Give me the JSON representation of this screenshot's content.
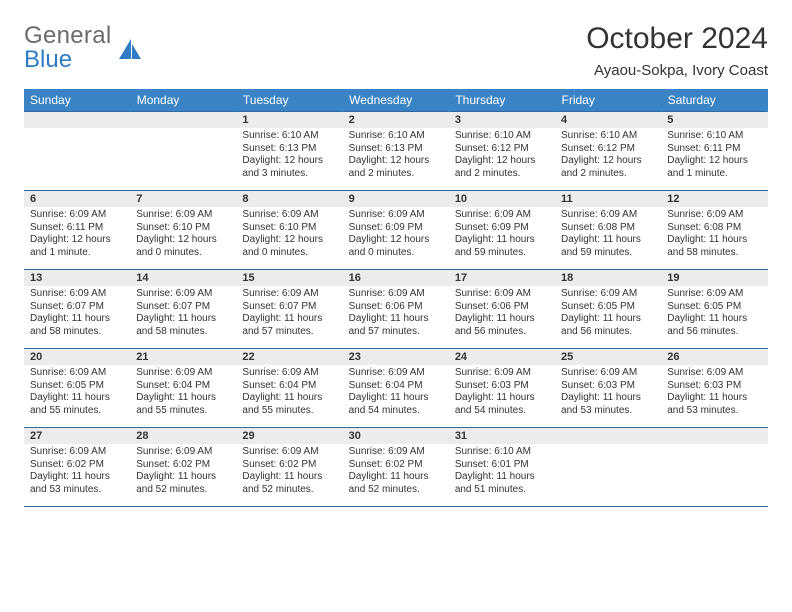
{
  "logo": {
    "word1": "General",
    "word2": "Blue"
  },
  "title": "October 2024",
  "location": "Ayaou-Sokpa, Ivory Coast",
  "day_headers": [
    "Sunday",
    "Monday",
    "Tuesday",
    "Wednesday",
    "Thursday",
    "Friday",
    "Saturday"
  ],
  "header_bg": "#3a84c6",
  "header_fg": "#ffffff",
  "daynum_bg": "#ececec",
  "rule_color": "#2f6aa0",
  "weeks": [
    [
      null,
      null,
      {
        "n": "1",
        "sunrise": "6:10 AM",
        "sunset": "6:13 PM",
        "daylight": "12 hours and 3 minutes."
      },
      {
        "n": "2",
        "sunrise": "6:10 AM",
        "sunset": "6:13 PM",
        "daylight": "12 hours and 2 minutes."
      },
      {
        "n": "3",
        "sunrise": "6:10 AM",
        "sunset": "6:12 PM",
        "daylight": "12 hours and 2 minutes."
      },
      {
        "n": "4",
        "sunrise": "6:10 AM",
        "sunset": "6:12 PM",
        "daylight": "12 hours and 2 minutes."
      },
      {
        "n": "5",
        "sunrise": "6:10 AM",
        "sunset": "6:11 PM",
        "daylight": "12 hours and 1 minute."
      }
    ],
    [
      {
        "n": "6",
        "sunrise": "6:09 AM",
        "sunset": "6:11 PM",
        "daylight": "12 hours and 1 minute."
      },
      {
        "n": "7",
        "sunrise": "6:09 AM",
        "sunset": "6:10 PM",
        "daylight": "12 hours and 0 minutes."
      },
      {
        "n": "8",
        "sunrise": "6:09 AM",
        "sunset": "6:10 PM",
        "daylight": "12 hours and 0 minutes."
      },
      {
        "n": "9",
        "sunrise": "6:09 AM",
        "sunset": "6:09 PM",
        "daylight": "12 hours and 0 minutes."
      },
      {
        "n": "10",
        "sunrise": "6:09 AM",
        "sunset": "6:09 PM",
        "daylight": "11 hours and 59 minutes."
      },
      {
        "n": "11",
        "sunrise": "6:09 AM",
        "sunset": "6:08 PM",
        "daylight": "11 hours and 59 minutes."
      },
      {
        "n": "12",
        "sunrise": "6:09 AM",
        "sunset": "6:08 PM",
        "daylight": "11 hours and 58 minutes."
      }
    ],
    [
      {
        "n": "13",
        "sunrise": "6:09 AM",
        "sunset": "6:07 PM",
        "daylight": "11 hours and 58 minutes."
      },
      {
        "n": "14",
        "sunrise": "6:09 AM",
        "sunset": "6:07 PM",
        "daylight": "11 hours and 58 minutes."
      },
      {
        "n": "15",
        "sunrise": "6:09 AM",
        "sunset": "6:07 PM",
        "daylight": "11 hours and 57 minutes."
      },
      {
        "n": "16",
        "sunrise": "6:09 AM",
        "sunset": "6:06 PM",
        "daylight": "11 hours and 57 minutes."
      },
      {
        "n": "17",
        "sunrise": "6:09 AM",
        "sunset": "6:06 PM",
        "daylight": "11 hours and 56 minutes."
      },
      {
        "n": "18",
        "sunrise": "6:09 AM",
        "sunset": "6:05 PM",
        "daylight": "11 hours and 56 minutes."
      },
      {
        "n": "19",
        "sunrise": "6:09 AM",
        "sunset": "6:05 PM",
        "daylight": "11 hours and 56 minutes."
      }
    ],
    [
      {
        "n": "20",
        "sunrise": "6:09 AM",
        "sunset": "6:05 PM",
        "daylight": "11 hours and 55 minutes."
      },
      {
        "n": "21",
        "sunrise": "6:09 AM",
        "sunset": "6:04 PM",
        "daylight": "11 hours and 55 minutes."
      },
      {
        "n": "22",
        "sunrise": "6:09 AM",
        "sunset": "6:04 PM",
        "daylight": "11 hours and 55 minutes."
      },
      {
        "n": "23",
        "sunrise": "6:09 AM",
        "sunset": "6:04 PM",
        "daylight": "11 hours and 54 minutes."
      },
      {
        "n": "24",
        "sunrise": "6:09 AM",
        "sunset": "6:03 PM",
        "daylight": "11 hours and 54 minutes."
      },
      {
        "n": "25",
        "sunrise": "6:09 AM",
        "sunset": "6:03 PM",
        "daylight": "11 hours and 53 minutes."
      },
      {
        "n": "26",
        "sunrise": "6:09 AM",
        "sunset": "6:03 PM",
        "daylight": "11 hours and 53 minutes."
      }
    ],
    [
      {
        "n": "27",
        "sunrise": "6:09 AM",
        "sunset": "6:02 PM",
        "daylight": "11 hours and 53 minutes."
      },
      {
        "n": "28",
        "sunrise": "6:09 AM",
        "sunset": "6:02 PM",
        "daylight": "11 hours and 52 minutes."
      },
      {
        "n": "29",
        "sunrise": "6:09 AM",
        "sunset": "6:02 PM",
        "daylight": "11 hours and 52 minutes."
      },
      {
        "n": "30",
        "sunrise": "6:09 AM",
        "sunset": "6:02 PM",
        "daylight": "11 hours and 52 minutes."
      },
      {
        "n": "31",
        "sunrise": "6:10 AM",
        "sunset": "6:01 PM",
        "daylight": "11 hours and 51 minutes."
      },
      null,
      null
    ]
  ],
  "labels": {
    "sunrise": "Sunrise:",
    "sunset": "Sunset:",
    "daylight": "Daylight:"
  }
}
